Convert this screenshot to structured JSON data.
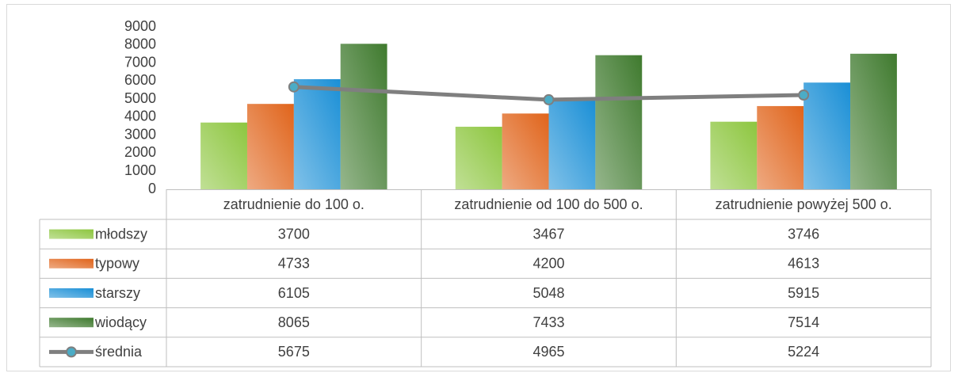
{
  "chart_data": {
    "type": "bar",
    "categories": [
      "zatrudnienie do 100 o.",
      "zatrudnienie od 100 do 500 o.",
      "zatrudnienie powyżej 500 o."
    ],
    "series": [
      {
        "name": "młodszy",
        "color": "#8dc63f",
        "values": [
          3700,
          3467,
          3746
        ]
      },
      {
        "name": "typowy",
        "color": "#e0641b",
        "values": [
          4733,
          4200,
          4613
        ]
      },
      {
        "name": "starszy",
        "color": "#1a8fd6",
        "values": [
          6105,
          5048,
          5915
        ]
      },
      {
        "name": "wiodący",
        "color": "#3f7a2e",
        "values": [
          8065,
          7433,
          7514
        ]
      },
      {
        "name": "średnia",
        "color": "#7f7f7f",
        "type": "line",
        "marker_color": "#4bacc6",
        "values": [
          5675,
          4965,
          5224
        ]
      }
    ],
    "ylim": [
      0,
      9000
    ],
    "yticks": [
      0,
      1000,
      2000,
      3000,
      4000,
      5000,
      6000,
      7000,
      8000,
      9000
    ],
    "grid": false
  }
}
